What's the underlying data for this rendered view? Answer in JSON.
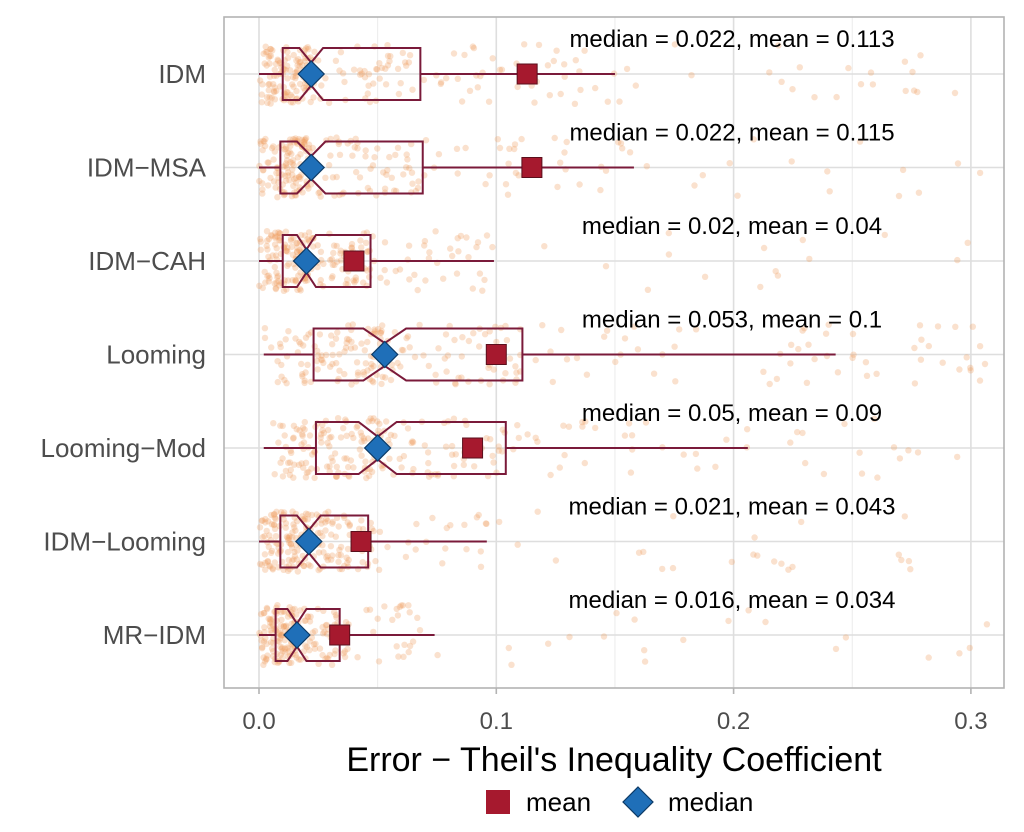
{
  "chart_data": {
    "type": "boxplot",
    "title": "",
    "xlabel": "Error − Theil's Inequality Coefficient",
    "ylabel": "",
    "xlim": [
      -0.015,
      0.315
    ],
    "x_ticks": [
      0.0,
      0.1,
      0.2,
      0.3
    ],
    "x_tick_labels": [
      "0.0",
      "0.1",
      "0.2",
      "0.3"
    ],
    "grid": true,
    "legend_position": "bottom",
    "legend": [
      {
        "name": "mean",
        "marker": "square",
        "color": "#a6192e"
      },
      {
        "name": "median",
        "marker": "diamond",
        "color": "#1f6fb8"
      }
    ],
    "colors": {
      "box": "#7a1a3a",
      "points": "#ee9a5c",
      "mean": "#a6192e",
      "median": "#1f6fb8",
      "grid": "#dedede",
      "panel_border": "#b3b3b3"
    },
    "categories": [
      {
        "label": "IDM",
        "annotation": "median = 0.022, mean = 0.113",
        "median": 0.022,
        "mean": 0.113,
        "q1": 0.01,
        "q3": 0.068,
        "whisker_low": 0.0,
        "whisker_high": 0.15,
        "notch_low": 0.017,
        "notch_high": 0.027
      },
      {
        "label": "IDM−MSA",
        "annotation": "median = 0.022, mean = 0.115",
        "median": 0.022,
        "mean": 0.115,
        "q1": 0.009,
        "q3": 0.069,
        "whisker_low": 0.0,
        "whisker_high": 0.158,
        "notch_low": 0.016,
        "notch_high": 0.028
      },
      {
        "label": "IDM−CAH",
        "annotation": "median = 0.02, mean = 0.04",
        "median": 0.02,
        "mean": 0.04,
        "q1": 0.01,
        "q3": 0.047,
        "whisker_low": 0.0,
        "whisker_high": 0.099,
        "notch_low": 0.016,
        "notch_high": 0.024
      },
      {
        "label": "Looming",
        "annotation": "median = 0.053, mean = 0.1",
        "median": 0.053,
        "mean": 0.1,
        "q1": 0.023,
        "q3": 0.111,
        "whisker_low": 0.002,
        "whisker_high": 0.243,
        "notch_low": 0.044,
        "notch_high": 0.062
      },
      {
        "label": "Looming−Mod",
        "annotation": "median = 0.05, mean = 0.09",
        "median": 0.05,
        "mean": 0.09,
        "q1": 0.024,
        "q3": 0.104,
        "whisker_low": 0.002,
        "whisker_high": 0.206,
        "notch_low": 0.042,
        "notch_high": 0.058
      },
      {
        "label": "IDM−Looming",
        "annotation": "median = 0.021, mean = 0.043",
        "median": 0.021,
        "mean": 0.043,
        "q1": 0.009,
        "q3": 0.046,
        "whisker_low": 0.0,
        "whisker_high": 0.096,
        "notch_low": 0.016,
        "notch_high": 0.026
      },
      {
        "label": "MR−IDM",
        "annotation": "median = 0.016, mean = 0.034",
        "median": 0.016,
        "mean": 0.034,
        "q1": 0.007,
        "q3": 0.034,
        "whisker_low": 0.0,
        "whisker_high": 0.074,
        "notch_low": 0.012,
        "notch_high": 0.02
      }
    ]
  }
}
